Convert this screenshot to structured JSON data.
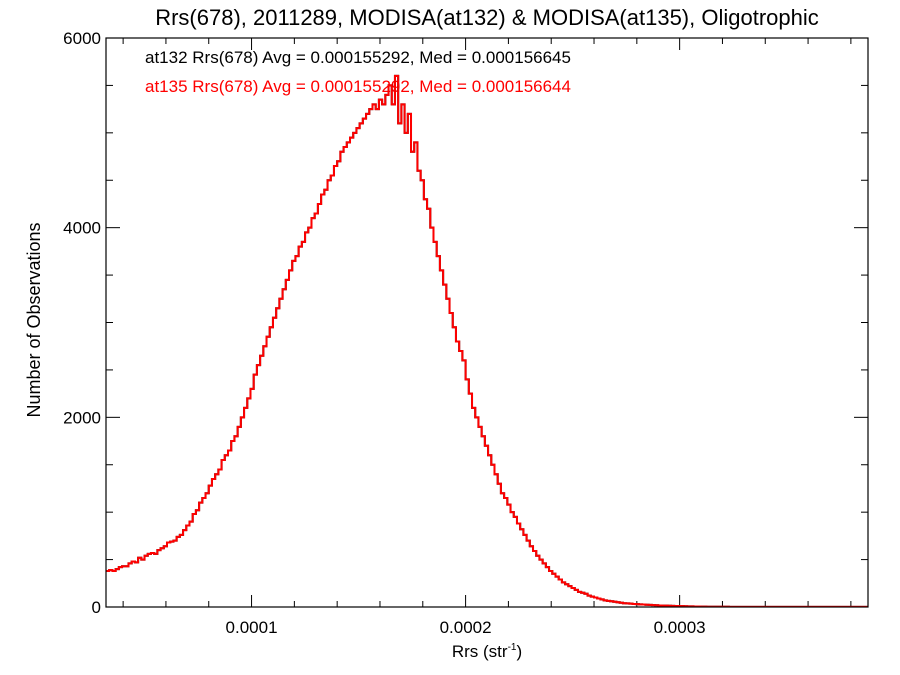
{
  "chart_data": {
    "type": "histogram",
    "title": "Rrs(678), 2011289, MODISA(at132) & MODISA(at135), Oligotrophic",
    "xlabel": "Rrs (str",
    "xlabel_superscript": "-1",
    "xlabel_close": ")",
    "ylabel": "Number of Observations",
    "xlim": [
      3.2e-05,
      0.000388
    ],
    "ylim": [
      0,
      6000
    ],
    "xticks": [
      0.0001,
      0.0002,
      0.0003
    ],
    "xtick_labels": [
      "0.0001",
      "0.0002",
      "0.0003"
    ],
    "yticks": [
      0,
      2000,
      4000,
      6000
    ],
    "ytick_labels": [
      "0",
      "2000",
      "4000",
      "6000"
    ],
    "grid": false,
    "colors": {
      "at132": "#000000",
      "at135": "#ff0000"
    },
    "annotations": [
      {
        "text": "at132 Rrs(678) Avg = 0.000155292, Med = 0.000156645",
        "color": "#000000"
      },
      {
        "text": "at135 Rrs(678) Avg = 0.000155292, Med = 0.000156644",
        "color": "#ff0000"
      }
    ],
    "bin_start": 3.2e-05,
    "bin_width": 1.5e-06,
    "series": [
      {
        "name": "at132",
        "values": [
          380,
          390,
          380,
          400,
          420,
          430,
          430,
          460,
          480,
          470,
          520,
          500,
          540,
          560,
          570,
          560,
          600,
          620,
          640,
          680,
          690,
          700,
          740,
          760,
          810,
          860,
          900,
          980,
          1020,
          1100,
          1150,
          1200,
          1280,
          1350,
          1400,
          1450,
          1550,
          1600,
          1650,
          1750,
          1800,
          1900,
          2000,
          2100,
          2200,
          2300,
          2450,
          2550,
          2650,
          2750,
          2850,
          2950,
          3050,
          3150,
          3250,
          3350,
          3450,
          3550,
          3650,
          3700,
          3800,
          3850,
          3950,
          4000,
          4100,
          4150,
          4250,
          4350,
          4400,
          4500,
          4550,
          4650,
          4700,
          4800,
          4850,
          4900,
          4950,
          5000,
          5050,
          5100,
          5150,
          5200,
          5250,
          5300,
          5250,
          5350,
          5300,
          5400,
          5500,
          5300,
          5600,
          5100,
          5300,
          5000,
          5200,
          4800,
          4900,
          4600,
          4500,
          4300,
          4200,
          4000,
          3850,
          3700,
          3550,
          3400,
          3250,
          3100,
          2950,
          2800,
          2700,
          2600,
          2400,
          2250,
          2100,
          2000,
          1900,
          1800,
          1700,
          1600,
          1500,
          1400,
          1300,
          1200,
          1150,
          1080,
          1000,
          950,
          880,
          820,
          760,
          700,
          640,
          590,
          540,
          500,
          460,
          420,
          380,
          350,
          320,
          290,
          260,
          240,
          220,
          200,
          180,
          160,
          150,
          140,
          120,
          110,
          100,
          90,
          80,
          70,
          65,
          60,
          55,
          50,
          45,
          40,
          38,
          35,
          32,
          30,
          28,
          26,
          24,
          22,
          20,
          18,
          16,
          15,
          14,
          13,
          12,
          11,
          10,
          9,
          8,
          7,
          6,
          5,
          5,
          4,
          4,
          3,
          3,
          3,
          2,
          2,
          2,
          2,
          1,
          1,
          1,
          1,
          1,
          1,
          1,
          1,
          1,
          1,
          1,
          1,
          1,
          1,
          1,
          1,
          1,
          1,
          1,
          1,
          1,
          1,
          1,
          1,
          1,
          1,
          1,
          1,
          1,
          1,
          1,
          1,
          1,
          1,
          1,
          1,
          1,
          1,
          1,
          1,
          1,
          1,
          1,
          1,
          1,
          1,
          1,
          1,
          1,
          1
        ]
      },
      {
        "name": "at135",
        "values": [
          380,
          390,
          380,
          400,
          420,
          430,
          430,
          460,
          480,
          470,
          520,
          500,
          540,
          560,
          570,
          560,
          600,
          620,
          640,
          680,
          690,
          700,
          740,
          760,
          810,
          860,
          900,
          980,
          1020,
          1100,
          1150,
          1200,
          1280,
          1350,
          1400,
          1450,
          1550,
          1600,
          1650,
          1750,
          1800,
          1900,
          2000,
          2100,
          2200,
          2300,
          2450,
          2550,
          2650,
          2750,
          2850,
          2950,
          3050,
          3150,
          3250,
          3350,
          3450,
          3550,
          3650,
          3700,
          3800,
          3850,
          3950,
          4000,
          4100,
          4150,
          4250,
          4350,
          4400,
          4500,
          4550,
          4650,
          4700,
          4800,
          4850,
          4900,
          4950,
          5000,
          5050,
          5100,
          5150,
          5200,
          5250,
          5300,
          5250,
          5350,
          5300,
          5400,
          5500,
          5300,
          5600,
          5100,
          5300,
          5000,
          5200,
          4800,
          4900,
          4600,
          4500,
          4300,
          4200,
          4000,
          3850,
          3700,
          3550,
          3400,
          3250,
          3100,
          2950,
          2800,
          2700,
          2600,
          2400,
          2250,
          2100,
          2000,
          1900,
          1800,
          1700,
          1600,
          1500,
          1400,
          1300,
          1200,
          1150,
          1080,
          1000,
          950,
          880,
          820,
          760,
          700,
          640,
          590,
          540,
          500,
          460,
          420,
          380,
          350,
          320,
          290,
          260,
          240,
          220,
          200,
          180,
          160,
          150,
          140,
          120,
          110,
          100,
          90,
          80,
          70,
          65,
          60,
          55,
          50,
          45,
          40,
          38,
          35,
          32,
          30,
          28,
          26,
          24,
          22,
          20,
          18,
          16,
          15,
          14,
          13,
          12,
          11,
          10,
          9,
          8,
          7,
          6,
          5,
          5,
          4,
          4,
          3,
          3,
          3,
          2,
          2,
          2,
          2,
          1,
          1,
          1,
          1,
          1,
          1,
          1,
          1,
          1,
          1,
          1,
          1,
          1,
          1,
          1,
          1,
          1,
          1,
          1,
          1,
          1,
          1,
          1,
          1,
          1,
          1,
          1,
          1,
          1,
          1,
          1,
          1,
          1,
          1,
          1,
          1,
          1,
          1,
          1,
          1,
          1,
          1,
          1,
          1,
          1,
          1,
          1,
          1,
          1,
          1
        ]
      }
    ]
  }
}
